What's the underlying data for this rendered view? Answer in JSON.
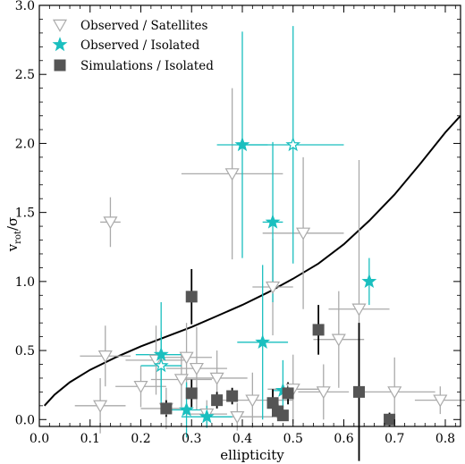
{
  "chart_data": {
    "type": "scatter",
    "xlabel": "ellipticity",
    "ylabel": "v_rot/σ",
    "ylabel_main": "v",
    "ylabel_sub": "rot",
    "ylabel_tail": "/σ",
    "xlim": [
      0.0,
      0.83
    ],
    "ylim": [
      -0.05,
      3.0
    ],
    "x_ticks": [
      0.0,
      0.1,
      0.2,
      0.3,
      0.4,
      0.5,
      0.6,
      0.7,
      0.8
    ],
    "y_ticks": [
      0.0,
      0.5,
      1.0,
      1.5,
      2.0,
      2.5,
      3.0
    ],
    "x_tick_labels": [
      "0.0",
      "0.1",
      "0.2",
      "0.3",
      "0.4",
      "0.5",
      "0.6",
      "0.7",
      "0.8"
    ],
    "y_tick_labels": [
      "0.0",
      "0.5",
      "1.0",
      "1.5",
      "2.0",
      "2.5",
      "3.0"
    ],
    "grid": false,
    "legend_position": "top-left",
    "colors": {
      "satellites": "#aaaaaa",
      "isolated": "#1abfbf",
      "simulations": "#555555",
      "curve": "#000000"
    },
    "series": [
      {
        "name": "Observed / Satellites",
        "marker": "triangle-down-open",
        "points": [
          {
            "x": 0.14,
            "y": 1.43,
            "xerr": 0.02,
            "yerr": 0.18
          },
          {
            "x": 0.38,
            "y": 1.78,
            "xerr": 0.1,
            "yerr": 0.62
          },
          {
            "x": 0.52,
            "y": 1.35,
            "xerr": 0.08,
            "yerr": 0.55
          },
          {
            "x": 0.46,
            "y": 0.96,
            "xerr": 0.04,
            "yerr": 0.35
          },
          {
            "x": 0.13,
            "y": 0.46,
            "xerr": 0.05,
            "yerr": 0.22
          },
          {
            "x": 0.2,
            "y": 0.24,
            "xerr": 0.05,
            "yerr": 0.15
          },
          {
            "x": 0.23,
            "y": 0.43,
            "xerr": 0.06,
            "yerr": 0.25
          },
          {
            "x": 0.28,
            "y": 0.29,
            "xerr": 0.06,
            "yerr": 0.2
          },
          {
            "x": 0.29,
            "y": 0.45,
            "xerr": 0.05,
            "yerr": 0.25
          },
          {
            "x": 0.31,
            "y": 0.37,
            "xerr": 0.06,
            "yerr": 0.3
          },
          {
            "x": 0.35,
            "y": 0.3,
            "xerr": 0.06,
            "yerr": 0.2
          },
          {
            "x": 0.39,
            "y": 0.02,
            "xerr": 0.07,
            "yerr": 0.1
          },
          {
            "x": 0.42,
            "y": 0.14,
            "xerr": 0.08,
            "yerr": 0.2
          },
          {
            "x": 0.5,
            "y": 0.22,
            "xerr": 0.05,
            "yerr": 0.25
          },
          {
            "x": 0.56,
            "y": 0.2,
            "xerr": 0.05,
            "yerr": 0.2
          },
          {
            "x": 0.59,
            "y": 0.58,
            "xerr": 0.05,
            "yerr": 0.35
          },
          {
            "x": 0.63,
            "y": 0.8,
            "xerr": 0.06,
            "yerr": 1.08
          },
          {
            "x": 0.12,
            "y": 0.1,
            "xerr": 0.05,
            "yerr": 0.2
          },
          {
            "x": 0.7,
            "y": 0.2,
            "xerr": 0.08,
            "yerr": 0.25
          },
          {
            "x": 0.79,
            "y": 0.14,
            "xerr": 0.05,
            "yerr": 0.1
          },
          {
            "x": 0.25,
            "y": 0.08,
            "xerr": 0.05,
            "yerr": 0.15
          },
          {
            "x": 0.33,
            "y": 0.04,
            "xerr": 0.04,
            "yerr": 0.1
          }
        ]
      },
      {
        "name": "Observed / Isolated",
        "marker": "star",
        "points": [
          {
            "x": 0.4,
            "y": 1.99,
            "xerr": 0.05,
            "yerr": 0.82,
            "filled": true
          },
          {
            "x": 0.5,
            "y": 1.99,
            "xerr": 0.1,
            "yerr": 0.86,
            "filled": false
          },
          {
            "x": 0.46,
            "y": 1.43,
            "xerr": 0.02,
            "yerr": 0.58,
            "filled": true
          },
          {
            "x": 0.65,
            "y": 1.0,
            "xerr": 0.0,
            "yerr": 0.17,
            "filled": true
          },
          {
            "x": 0.44,
            "y": 0.56,
            "xerr": 0.05,
            "yerr": 0.56,
            "filled": true
          },
          {
            "x": 0.24,
            "y": 0.47,
            "xerr": 0.05,
            "yerr": 0.38,
            "filled": true
          },
          {
            "x": 0.24,
            "y": 0.39,
            "xerr": 0.04,
            "yerr": 0.25,
            "filled": false
          },
          {
            "x": 0.29,
            "y": 0.07,
            "xerr": 0.05,
            "yerr": 0.2,
            "filled": true
          },
          {
            "x": 0.33,
            "y": 0.02,
            "xerr": 0.05,
            "yerr": 0.08,
            "filled": true
          },
          {
            "x": 0.48,
            "y": 0.21,
            "xerr": 0.02,
            "yerr": 0.22,
            "filled": true
          }
        ]
      },
      {
        "name": "Simulations / Isolated",
        "marker": "square",
        "points": [
          {
            "x": 0.3,
            "y": 0.89,
            "yerr": 0.2
          },
          {
            "x": 0.55,
            "y": 0.65,
            "yerr": 0.18
          },
          {
            "x": 0.25,
            "y": 0.08,
            "yerr": 0.06
          },
          {
            "x": 0.3,
            "y": 0.19,
            "yerr": 0.1
          },
          {
            "x": 0.35,
            "y": 0.14,
            "yerr": 0.06
          },
          {
            "x": 0.38,
            "y": 0.17,
            "yerr": 0.06
          },
          {
            "x": 0.46,
            "y": 0.12,
            "yerr": 0.1
          },
          {
            "x": 0.47,
            "y": 0.06,
            "yerr": 0.05
          },
          {
            "x": 0.48,
            "y": 0.03,
            "yerr": 0.04
          },
          {
            "x": 0.49,
            "y": 0.19,
            "yerr": 0.08
          },
          {
            "x": 0.63,
            "y": 0.2,
            "yerr": 0.5
          },
          {
            "x": 0.69,
            "y": 0.0,
            "yerr": 0.05
          }
        ]
      }
    ],
    "curve": {
      "x": [
        0.01,
        0.03,
        0.06,
        0.1,
        0.15,
        0.2,
        0.25,
        0.3,
        0.35,
        0.4,
        0.45,
        0.5,
        0.55,
        0.6,
        0.65,
        0.7,
        0.75,
        0.8,
        0.83
      ],
      "y": [
        0.1,
        0.18,
        0.27,
        0.36,
        0.45,
        0.53,
        0.6,
        0.67,
        0.75,
        0.83,
        0.92,
        1.02,
        1.13,
        1.27,
        1.44,
        1.63,
        1.85,
        2.08,
        2.2
      ]
    }
  }
}
